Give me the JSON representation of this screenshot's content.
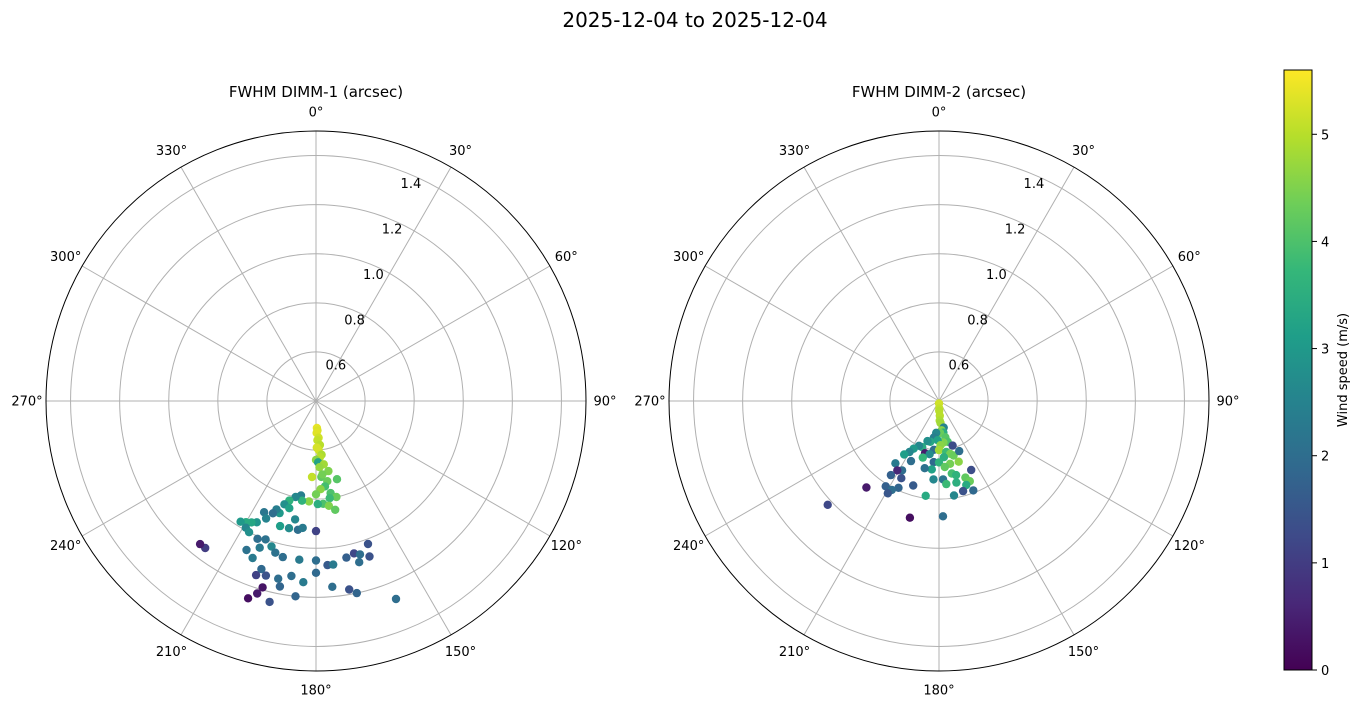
{
  "figure_title": "2025-12-04 to 2025-12-04",
  "colorbar": {
    "label": "Wind speed (m/s)",
    "colormap": "viridis",
    "range": [
      0,
      5.6
    ],
    "ticks": [
      "0",
      "1",
      "2",
      "3",
      "4",
      "5"
    ],
    "tick_values": [
      0,
      1,
      2,
      3,
      4,
      5
    ]
  },
  "colors": {
    "grid": "#b0b0b0",
    "viridis_stops": [
      "#440154",
      "#482878",
      "#3e4a89",
      "#31688e",
      "#26828e",
      "#1f9e89",
      "#35b779",
      "#6ece58",
      "#b5de2b",
      "#fde725"
    ]
  },
  "chart_data": [
    {
      "type": "scatter",
      "projection": "polar",
      "title": "FWHM DIMM-1 (arcsec)",
      "theta_zero": "N",
      "theta_direction": "clockwise",
      "theta_ticks": [
        {
          "deg": 0,
          "label": "0°"
        },
        {
          "deg": 30,
          "label": "30°"
        },
        {
          "deg": 60,
          "label": "60°"
        },
        {
          "deg": 90,
          "label": "90°"
        },
        {
          "deg": 120,
          "label": "120°"
        },
        {
          "deg": 150,
          "label": "150°"
        },
        {
          "deg": 180,
          "label": "180°"
        },
        {
          "deg": 210,
          "label": "210°"
        },
        {
          "deg": 240,
          "label": "240°"
        },
        {
          "deg": 270,
          "label": "270°"
        },
        {
          "deg": 300,
          "label": "300°"
        },
        {
          "deg": 330,
          "label": "330°"
        }
      ],
      "r_ticks": [
        {
          "value": 0.6,
          "label": "0.6"
        },
        {
          "value": 0.8,
          "label": "0.8"
        },
        {
          "value": 1.0,
          "label": "1.0"
        },
        {
          "value": 1.2,
          "label": "1.2"
        },
        {
          "value": 1.4,
          "label": "1.4"
        }
      ],
      "rlim": [
        0.4,
        1.5
      ],
      "grid": true,
      "columns": [
        "direction_deg",
        "fwhm_arcsec",
        "wind_speed_ms"
      ],
      "points": [
        [
          178,
          0.51,
          5.4
        ],
        [
          177,
          0.52,
          5.3
        ],
        [
          179,
          0.53,
          5.35
        ],
        [
          176,
          0.55,
          5.2
        ],
        [
          178,
          0.56,
          5.1
        ],
        [
          175,
          0.58,
          5.0
        ],
        [
          177,
          0.6,
          5.2
        ],
        [
          179,
          0.59,
          5.25
        ],
        [
          174,
          0.62,
          4.9
        ],
        [
          176,
          0.63,
          5.0
        ],
        [
          180,
          0.64,
          4.6
        ],
        [
          178,
          0.65,
          3.2
        ],
        [
          173,
          0.66,
          4.8
        ],
        [
          177,
          0.67,
          4.7
        ],
        [
          170,
          0.69,
          4.5
        ],
        [
          176,
          0.71,
          4.2
        ],
        [
          175,
          0.7,
          4.4
        ],
        [
          172,
          0.73,
          4.3
        ],
        [
          165,
          0.73,
          4.1
        ],
        [
          174,
          0.75,
          3.9
        ],
        [
          177,
          0.76,
          4.6
        ],
        [
          171,
          0.78,
          4.0
        ],
        [
          180,
          0.78,
          4.4
        ],
        [
          183,
          0.71,
          5.1
        ],
        [
          168,
          0.8,
          4.3
        ],
        [
          172,
          0.8,
          3.8
        ],
        [
          176,
          0.82,
          4.0
        ],
        [
          179,
          0.82,
          3.5
        ],
        [
          173,
          0.83,
          4.5
        ],
        [
          170,
          0.85,
          4.2
        ],
        [
          184,
          0.81,
          4.6
        ],
        [
          189,
          0.79,
          2.4
        ],
        [
          188,
          0.81,
          3.6
        ],
        [
          192,
          0.8,
          2.6
        ],
        [
          195,
          0.82,
          3.6
        ],
        [
          197,
          0.84,
          2.8
        ],
        [
          194,
          0.85,
          3.2
        ],
        [
          198,
          0.88,
          3.0
        ],
        [
          190,
          0.89,
          2.6
        ],
        [
          200,
          0.87,
          2.4
        ],
        [
          201,
          0.89,
          2.0
        ],
        [
          205,
          0.9,
          2.2
        ],
        [
          203,
          0.92,
          2.5
        ],
        [
          196,
          0.93,
          3.1
        ],
        [
          192,
          0.93,
          2.7
        ],
        [
          188,
          0.93,
          2.0
        ],
        [
          186,
          0.92,
          2.3
        ],
        [
          180,
          0.93,
          1.1
        ],
        [
          206,
          0.95,
          2.9
        ],
        [
          208,
          0.96,
          3.3
        ],
        [
          210,
          0.97,
          3.4
        ],
        [
          212,
          0.98,
          3.0
        ],
        [
          209,
          0.99,
          2.6
        ],
        [
          207,
          1.0,
          2.8
        ],
        [
          203,
          1.01,
          2.0
        ],
        [
          200,
          1.0,
          2.1
        ],
        [
          197,
          1.02,
          2.6
        ],
        [
          195,
          1.04,
          2.1
        ],
        [
          201,
          1.04,
          2.3
        ],
        [
          192,
          1.05,
          2.0
        ],
        [
          186,
          1.05,
          2.3
        ],
        [
          180,
          1.05,
          2.0
        ],
        [
          176,
          1.07,
          1.6
        ],
        [
          174,
          1.07,
          2.3
        ],
        [
          169,
          1.05,
          1.7
        ],
        [
          166,
          1.04,
          1.2
        ],
        [
          164,
          1.05,
          2.0
        ],
        [
          161,
          1.07,
          1.4
        ],
        [
          165,
          1.08,
          2.0
        ],
        [
          160,
          1.02,
          1.4
        ],
        [
          205,
          1.07,
          2.1
        ],
        [
          202,
          1.09,
          2.3
        ],
        [
          198,
          1.12,
          1.9
        ],
        [
          196,
          1.14,
          1.4
        ],
        [
          199,
          1.15,
          1.1
        ],
        [
          192,
          1.14,
          2.0
        ],
        [
          188,
          1.12,
          2.0
        ],
        [
          184,
          1.14,
          2.3
        ],
        [
          180,
          1.1,
          1.9
        ],
        [
          175,
          1.16,
          2.0
        ],
        [
          170,
          1.18,
          1.4
        ],
        [
          168,
          1.2,
          1.8
        ],
        [
          186,
          1.2,
          1.8
        ],
        [
          191,
          1.17,
          1.8
        ],
        [
          196,
          1.19,
          0.3
        ],
        [
          197,
          1.22,
          0.4
        ],
        [
          193,
          1.24,
          1.4
        ],
        [
          199,
          1.25,
          0.2
        ],
        [
          217,
          1.15,
          1.0
        ],
        [
          219,
          1.15,
          0.4
        ],
        [
          158,
          1.27,
          2.0
        ]
      ]
    },
    {
      "type": "scatter",
      "projection": "polar",
      "title": "FWHM DIMM-2 (arcsec)",
      "theta_zero": "N",
      "theta_direction": "clockwise",
      "theta_ticks": [
        {
          "deg": 0,
          "label": "0°"
        },
        {
          "deg": 30,
          "label": "30°"
        },
        {
          "deg": 60,
          "label": "60°"
        },
        {
          "deg": 90,
          "label": "90°"
        },
        {
          "deg": 120,
          "label": "120°"
        },
        {
          "deg": 150,
          "label": "150°"
        },
        {
          "deg": 180,
          "label": "180°"
        },
        {
          "deg": 210,
          "label": "210°"
        },
        {
          "deg": 240,
          "label": "240°"
        },
        {
          "deg": 270,
          "label": "270°"
        },
        {
          "deg": 300,
          "label": "300°"
        },
        {
          "deg": 330,
          "label": "330°"
        }
      ],
      "r_ticks": [
        {
          "value": 0.6,
          "label": "0.6"
        },
        {
          "value": 0.8,
          "label": "0.8"
        },
        {
          "value": 1.0,
          "label": "1.0"
        },
        {
          "value": 1.2,
          "label": "1.2"
        },
        {
          "value": 1.4,
          "label": "1.4"
        }
      ],
      "rlim": [
        0.4,
        1.5
      ],
      "grid": true,
      "columns": [
        "direction_deg",
        "fwhm_arcsec",
        "wind_speed_ms"
      ],
      "points": [
        [
          180,
          0.41,
          5.2
        ],
        [
          178,
          0.43,
          5.1
        ],
        [
          179,
          0.44,
          5.0
        ],
        [
          177,
          0.46,
          5.0
        ],
        [
          178,
          0.48,
          4.9
        ],
        [
          176,
          0.49,
          4.8
        ],
        [
          170,
          0.51,
          2.5
        ],
        [
          175,
          0.52,
          4.6
        ],
        [
          172,
          0.53,
          3.5
        ],
        [
          178,
          0.53,
          4.3
        ],
        [
          185,
          0.53,
          2.6
        ],
        [
          188,
          0.55,
          2.4
        ],
        [
          170,
          0.55,
          4.1
        ],
        [
          168,
          0.57,
          4.0
        ],
        [
          174,
          0.57,
          4.5
        ],
        [
          182,
          0.56,
          3.2
        ],
        [
          192,
          0.57,
          3.3
        ],
        [
          196,
          0.57,
          2.8
        ],
        [
          178,
          0.58,
          4.6
        ],
        [
          163,
          0.59,
          1.3
        ],
        [
          200,
          0.6,
          3.4
        ],
        [
          204,
          0.6,
          2.6
        ],
        [
          186,
          0.6,
          2.0
        ],
        [
          180,
          0.6,
          4.8
        ],
        [
          172,
          0.61,
          3.8
        ],
        [
          168,
          0.62,
          4.4
        ],
        [
          208,
          0.62,
          3.0
        ],
        [
          195,
          0.62,
          0.4
        ],
        [
          190,
          0.62,
          2.7
        ],
        [
          175,
          0.63,
          3.5
        ],
        [
          165,
          0.63,
          4.3
        ],
        [
          158,
          0.62,
          2.0
        ],
        [
          210,
          0.64,
          2.6
        ],
        [
          196,
          0.64,
          3.7
        ],
        [
          185,
          0.65,
          1.9
        ],
        [
          180,
          0.65,
          3.6
        ],
        [
          170,
          0.66,
          4.4
        ],
        [
          162,
          0.66,
          4.6
        ],
        [
          213,
          0.66,
          3.1
        ],
        [
          205,
          0.67,
          2.0
        ],
        [
          175,
          0.67,
          4.2
        ],
        [
          186,
          0.68,
          3.2
        ],
        [
          192,
          0.68,
          2.1
        ],
        [
          170,
          0.7,
          3.9
        ],
        [
          167,
          0.71,
          3.6
        ],
        [
          177,
          0.72,
          2.2
        ],
        [
          215,
          0.71,
          2.3
        ],
        [
          208,
          0.72,
          2.0
        ],
        [
          184,
          0.72,
          2.6
        ],
        [
          155,
          0.71,
          1.3
        ],
        [
          161,
          0.73,
          4.2
        ],
        [
          159,
          0.75,
          4.3
        ],
        [
          211,
          0.73,
          0.6
        ],
        [
          206,
          0.75,
          1.4
        ],
        [
          213,
          0.76,
          1.7
        ],
        [
          197,
          0.76,
          1.6
        ],
        [
          175,
          0.74,
          3.8
        ],
        [
          168,
          0.74,
          3.5
        ],
        [
          162,
          0.76,
          3.4
        ],
        [
          165,
          0.78,
          1.4
        ],
        [
          159,
          0.79,
          1.9
        ],
        [
          205,
          0.79,
          1.8
        ],
        [
          188,
          0.79,
          3.4
        ],
        [
          171,
          0.79,
          2.6
        ],
        [
          212,
          0.81,
          1.7
        ],
        [
          208,
          0.81,
          2.0
        ],
        [
          209,
          0.83,
          1.5
        ],
        [
          220,
          0.86,
          0.4
        ],
        [
          194,
          0.89,
          0.2
        ],
        [
          178,
          0.87,
          2.0
        ],
        [
          227,
          1.02,
          1.2
        ]
      ]
    }
  ]
}
